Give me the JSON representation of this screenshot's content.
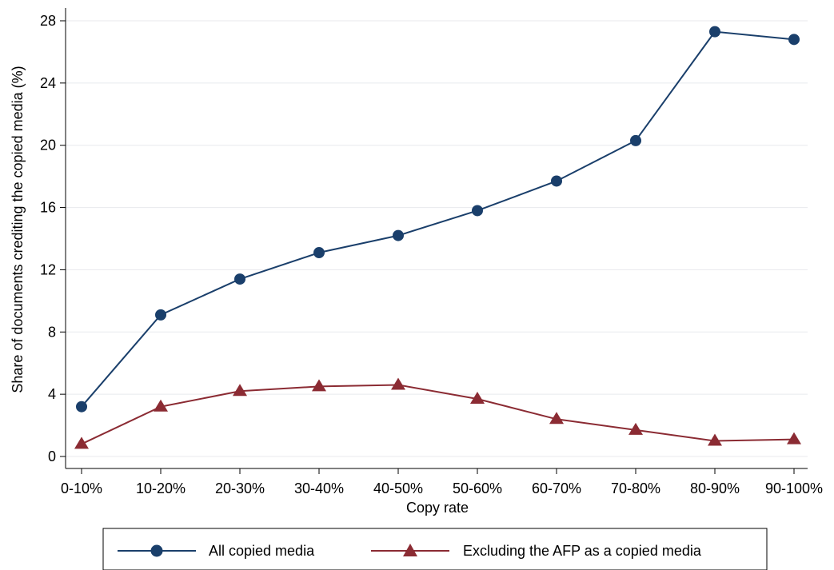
{
  "chart_data": {
    "type": "line",
    "title": "",
    "xlabel": "Copy rate",
    "ylabel": "Share of documents crediting the copied media (%)",
    "categories": [
      "0-10%",
      "10-20%",
      "20-30%",
      "30-40%",
      "40-50%",
      "50-60%",
      "60-70%",
      "70-80%",
      "80-90%",
      "90-100%"
    ],
    "ylim": [
      0,
      28
    ],
    "yticks": [
      0,
      4,
      8,
      12,
      16,
      20,
      24,
      28
    ],
    "grid": true,
    "legend_position": "bottom",
    "series": [
      {
        "name": "All copied media",
        "marker": "circle",
        "color": "#1a3f6b",
        "values": [
          3.2,
          9.1,
          11.4,
          13.1,
          14.2,
          15.8,
          17.7,
          20.3,
          27.3,
          26.8
        ]
      },
      {
        "name": "Excluding the AFP as a copied media",
        "marker": "triangle",
        "color": "#8b2b33",
        "values": [
          0.8,
          3.2,
          4.2,
          4.5,
          4.6,
          3.7,
          2.4,
          1.7,
          1.0,
          1.1
        ]
      }
    ]
  }
}
